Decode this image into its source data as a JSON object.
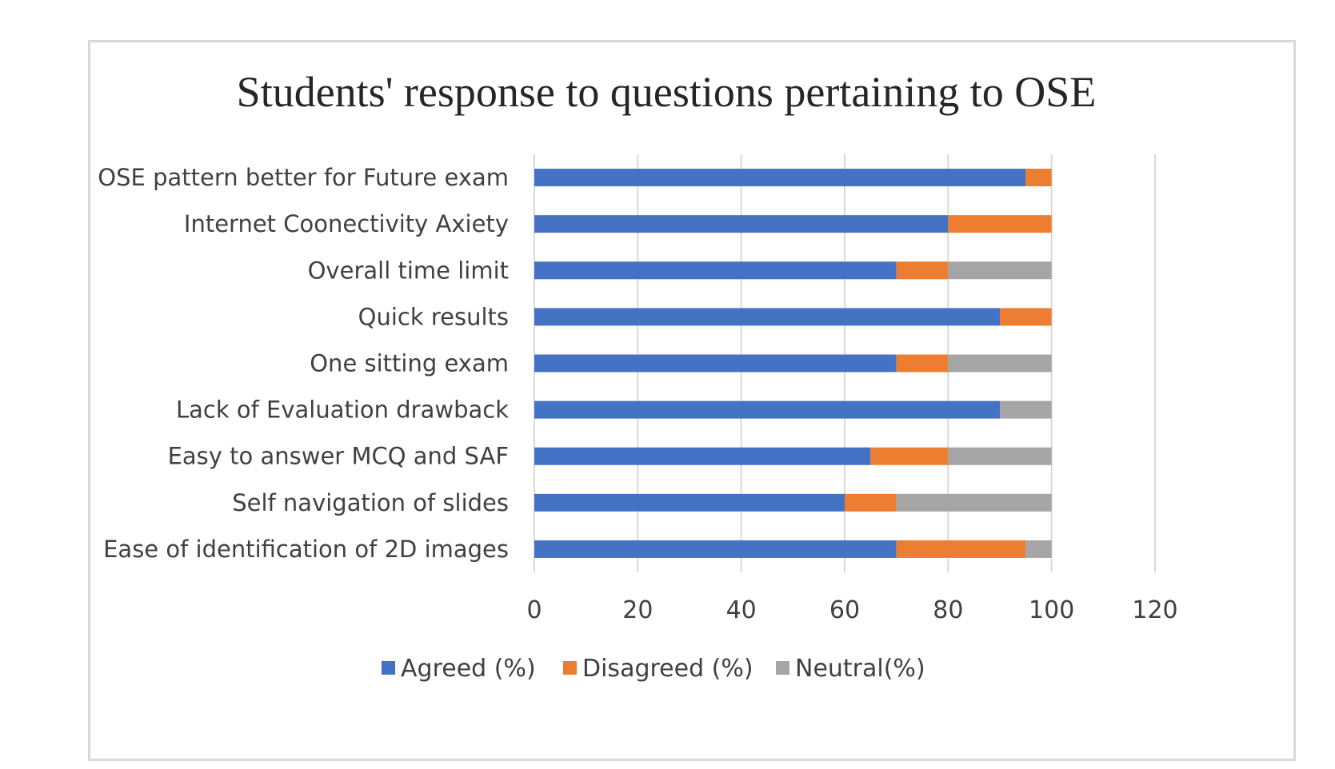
{
  "chart_data": {
    "type": "bar",
    "orientation": "horizontal",
    "stacked": true,
    "title": "Students' response to questions pertaining to OSE",
    "xlabel": "",
    "ylabel": "",
    "xlim": [
      0,
      120
    ],
    "xticks": [
      0,
      20,
      40,
      60,
      80,
      100,
      120
    ],
    "grid": true,
    "legend_position": "bottom",
    "categories": [
      "OSE pattern better for Future exam",
      "Internet Coonectivity Axiety",
      "Overall time limit",
      "Quick results",
      "One sitting exam",
      "Lack of Evaluation drawback",
      "Easy to answer MCQ and SAF",
      "Self navigation of slides",
      "Ease of identification of 2D images"
    ],
    "series": [
      {
        "name": "Agreed (%)",
        "color": "#4472c4",
        "values": [
          95,
          80,
          70,
          90,
          70,
          90,
          65,
          60,
          70
        ]
      },
      {
        "name": "Disagreed (%)",
        "color": "#ed7d31",
        "values": [
          5,
          20,
          10,
          10,
          10,
          0,
          15,
          10,
          25
        ]
      },
      {
        "name": "Neutral(%)",
        "color": "#a5a5a5",
        "values": [
          0,
          0,
          20,
          0,
          20,
          10,
          20,
          30,
          5
        ]
      }
    ]
  }
}
